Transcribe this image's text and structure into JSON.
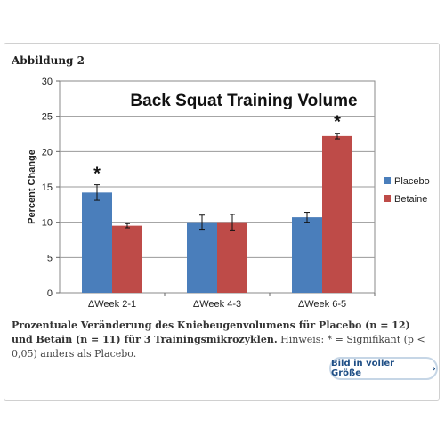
{
  "figure": {
    "label": "Abbildung 2",
    "caption_bold": "Prozentuale Veränderung des Kniebeugenvolumens für Placebo (n = 12) und Betain (n = 11) für 3 Trainingsmikrozyklen.",
    "caption_note": "Hinweis: * = Signifikant (p < 0,05) anders als Placebo.",
    "fullsize_button": "Bild in voller Größe",
    "fullsize_icon": "chevron-right-icon"
  },
  "chart_data": {
    "type": "bar",
    "title": "Back Squat Training Volume",
    "ylabel": "Percent Change",
    "xlabel": "",
    "ylim": [
      0,
      30
    ],
    "yticks": [
      0,
      5,
      10,
      15,
      20,
      25,
      30
    ],
    "grid": true,
    "legend_position": "right",
    "categories": [
      "ΔWeek 2-1",
      "ΔWeek 4-3",
      "ΔWeek 6-5"
    ],
    "series": [
      {
        "name": "Placebo",
        "color": "#4a7ebb",
        "values": [
          14.2,
          10.0,
          10.7
        ],
        "errors": [
          1.1,
          1.0,
          0.7
        ]
      },
      {
        "name": "Betaine",
        "color": "#be4b48",
        "values": [
          9.5,
          10.0,
          22.2
        ],
        "errors": [
          0.3,
          1.1,
          0.4
        ]
      }
    ],
    "annotations": [
      {
        "category": "ΔWeek 2-1",
        "series": "Placebo",
        "text": "*"
      },
      {
        "category": "ΔWeek 6-5",
        "series": "Betaine",
        "text": "*"
      }
    ]
  }
}
